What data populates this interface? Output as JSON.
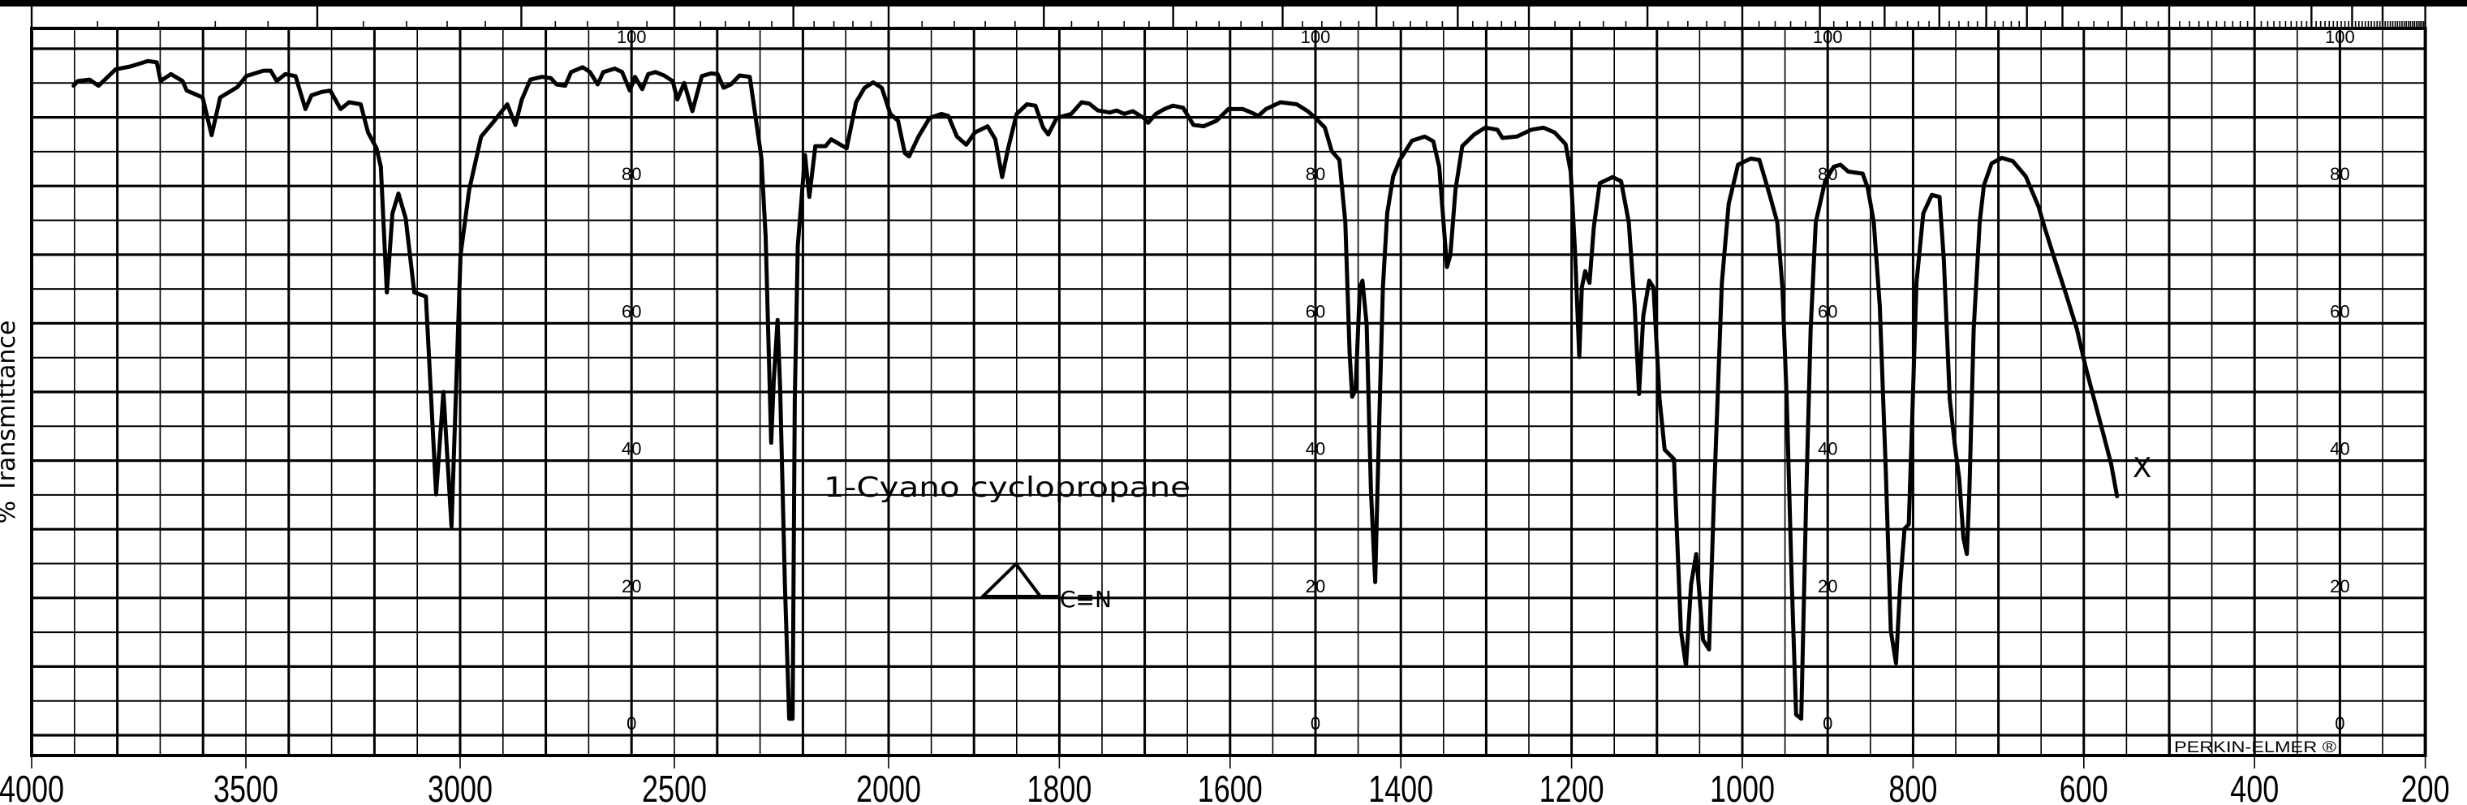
{
  "chart_data": {
    "type": "line",
    "title": "",
    "xlabel": "",
    "ylabel": "% Transmittance",
    "xlim": [
      4000,
      200
    ],
    "ylim": [
      0,
      100
    ],
    "x_scale": "piecewise linear, expanded below 2000",
    "grid": true,
    "x_ticks": [
      4000,
      3500,
      3000,
      2500,
      2000,
      1800,
      1600,
      1400,
      1200,
      1000,
      800,
      600,
      400,
      200
    ],
    "y_ticks": [
      100,
      80,
      60,
      40,
      20,
      0
    ],
    "y_tick_label_columns": [
      2600,
      1500,
      900,
      300
    ],
    "top_scale_major_ticks_um": [
      2.5,
      3,
      3.5,
      4,
      4.5,
      5,
      5.5,
      6,
      6.5,
      7,
      7.5,
      8,
      9,
      10,
      11,
      12,
      13,
      14,
      15,
      16,
      18,
      20,
      25,
      30,
      35,
      40,
      50
    ],
    "annotations": {
      "compound_name": "1-Cyano cyclopropane",
      "formula_group": "C≡N",
      "marker": "X",
      "marker_at": [
        540,
        39
      ]
    },
    "brand": "PERKIN-ELMER ®",
    "colors": {
      "ink": "#000000",
      "paper": "#ffffff"
    },
    "series": [
      {
        "points": [
          [
            3902,
            94.6
          ],
          [
            3892,
            95.3
          ],
          [
            3865,
            95.5
          ],
          [
            3844,
            94.6
          ],
          [
            3804,
            97
          ],
          [
            3770,
            97.4
          ],
          [
            3729,
            98.2
          ],
          [
            3708,
            98
          ],
          [
            3699,
            95.3
          ],
          [
            3675,
            96.3
          ],
          [
            3648,
            95.3
          ],
          [
            3638,
            93.9
          ],
          [
            3601,
            92.9
          ],
          [
            3580,
            87.4
          ],
          [
            3560,
            92.9
          ],
          [
            3520,
            94.4
          ],
          [
            3499,
            96
          ],
          [
            3459,
            96.8
          ],
          [
            3442,
            96.8
          ],
          [
            3428,
            95.3
          ],
          [
            3408,
            96.3
          ],
          [
            3384,
            96
          ],
          [
            3361,
            91.2
          ],
          [
            3347,
            93.2
          ],
          [
            3323,
            93.7
          ],
          [
            3303,
            93.9
          ],
          [
            3279,
            91.2
          ],
          [
            3259,
            92.2
          ],
          [
            3232,
            91.9
          ],
          [
            3215,
            87.8
          ],
          [
            3195,
            85.5
          ],
          [
            3185,
            82.8
          ],
          [
            3171,
            64.5
          ],
          [
            3158,
            76
          ],
          [
            3144,
            78.9
          ],
          [
            3127,
            75.3
          ],
          [
            3107,
            64.5
          ],
          [
            3080,
            63.9
          ],
          [
            3056,
            35.1
          ],
          [
            3039,
            50
          ],
          [
            3020,
            30.4
          ],
          [
            2999,
            69.9
          ],
          [
            2979,
            79.4
          ],
          [
            2951,
            87.2
          ],
          [
            2924,
            89.2
          ],
          [
            2890,
            91.9
          ],
          [
            2871,
            88.9
          ],
          [
            2856,
            92.6
          ],
          [
            2836,
            95.5
          ],
          [
            2809,
            95.9
          ],
          [
            2788,
            95.7
          ],
          [
            2775,
            94.8
          ],
          [
            2755,
            94.6
          ],
          [
            2741,
            96.6
          ],
          [
            2714,
            97.3
          ],
          [
            2697,
            96.6
          ],
          [
            2679,
            94.8
          ],
          [
            2666,
            96.6
          ],
          [
            2639,
            97.1
          ],
          [
            2622,
            96.6
          ],
          [
            2604,
            93.9
          ],
          [
            2592,
            95.9
          ],
          [
            2575,
            94.1
          ],
          [
            2561,
            96.3
          ],
          [
            2544,
            96.6
          ],
          [
            2524,
            96.1
          ],
          [
            2504,
            95.3
          ],
          [
            2493,
            92.6
          ],
          [
            2477,
            95
          ],
          [
            2458,
            90.9
          ],
          [
            2436,
            96
          ],
          [
            2415,
            96.4
          ],
          [
            2399,
            96.3
          ],
          [
            2385,
            94.3
          ],
          [
            2368,
            94.8
          ],
          [
            2348,
            96.1
          ],
          [
            2324,
            95.9
          ],
          [
            2314,
            91.6
          ],
          [
            2297,
            84.1
          ],
          [
            2287,
            72.6
          ],
          [
            2274,
            42.6
          ],
          [
            2268,
            51.7
          ],
          [
            2259,
            60.5
          ],
          [
            2253,
            50.3
          ],
          [
            2242,
            22
          ],
          [
            2232,
            2.4
          ],
          [
            2224,
            2.4
          ],
          [
            2219,
            49
          ],
          [
            2212,
            71.3
          ],
          [
            2195,
            84.5
          ],
          [
            2185,
            78.4
          ],
          [
            2171,
            85.8
          ],
          [
            2147,
            85.8
          ],
          [
            2134,
            86.8
          ],
          [
            2098,
            85.5
          ],
          [
            2076,
            92.2
          ],
          [
            2056,
            94.3
          ],
          [
            2036,
            95.1
          ],
          [
            2016,
            94.3
          ],
          [
            1998,
            90.5
          ],
          [
            1989,
            89.5
          ],
          [
            1981,
            84.8
          ],
          [
            1976,
            84.3
          ],
          [
            1965,
            87.2
          ],
          [
            1952,
            89.9
          ],
          [
            1938,
            90.5
          ],
          [
            1930,
            90.2
          ],
          [
            1920,
            87.2
          ],
          [
            1909,
            86
          ],
          [
            1899,
            87.8
          ],
          [
            1884,
            88.7
          ],
          [
            1875,
            86.8
          ],
          [
            1867,
            81.3
          ],
          [
            1860,
            85.5
          ],
          [
            1850,
            90.5
          ],
          [
            1838,
            91.9
          ],
          [
            1828,
            91.7
          ],
          [
            1819,
            88.5
          ],
          [
            1813,
            87.5
          ],
          [
            1803,
            89.9
          ],
          [
            1786,
            90.5
          ],
          [
            1774,
            92.2
          ],
          [
            1765,
            92
          ],
          [
            1755,
            91
          ],
          [
            1741,
            90.7
          ],
          [
            1733,
            91
          ],
          [
            1724,
            90.5
          ],
          [
            1714,
            90.9
          ],
          [
            1701,
            89.9
          ],
          [
            1696,
            89.2
          ],
          [
            1687,
            90.5
          ],
          [
            1677,
            91.2
          ],
          [
            1667,
            91.7
          ],
          [
            1655,
            91.4
          ],
          [
            1643,
            88.9
          ],
          [
            1631,
            88.7
          ],
          [
            1616,
            89.5
          ],
          [
            1602,
            91.2
          ],
          [
            1585,
            91.2
          ],
          [
            1575,
            90.7
          ],
          [
            1567,
            90.2
          ],
          [
            1558,
            91.2
          ],
          [
            1541,
            92.2
          ],
          [
            1522,
            91.9
          ],
          [
            1509,
            90.9
          ],
          [
            1500,
            89.9
          ],
          [
            1489,
            88.5
          ],
          [
            1481,
            85.1
          ],
          [
            1472,
            83.8
          ],
          [
            1465,
            74.7
          ],
          [
            1460,
            55.7
          ],
          [
            1457,
            49.3
          ],
          [
            1453,
            50.3
          ],
          [
            1448,
            65.2
          ],
          [
            1445,
            66.2
          ],
          [
            1440,
            59.8
          ],
          [
            1435,
            35.5
          ],
          [
            1430,
            22.3
          ],
          [
            1426,
            42.2
          ],
          [
            1421,
            65.2
          ],
          [
            1416,
            76
          ],
          [
            1409,
            81.4
          ],
          [
            1401,
            83.8
          ],
          [
            1387,
            86.6
          ],
          [
            1372,
            87.2
          ],
          [
            1362,
            86.5
          ],
          [
            1355,
            82.8
          ],
          [
            1350,
            74.7
          ],
          [
            1346,
            68.2
          ],
          [
            1342,
            69.9
          ],
          [
            1336,
            79.4
          ],
          [
            1328,
            85.8
          ],
          [
            1314,
            87.5
          ],
          [
            1301,
            88.5
          ],
          [
            1287,
            88.2
          ],
          [
            1281,
            87
          ],
          [
            1264,
            87.2
          ],
          [
            1247,
            88.2
          ],
          [
            1233,
            88.5
          ],
          [
            1220,
            87.8
          ],
          [
            1207,
            86.1
          ],
          [
            1201,
            82.1
          ],
          [
            1196,
            70.6
          ],
          [
            1191,
            55.1
          ],
          [
            1188,
            65.2
          ],
          [
            1184,
            67.6
          ],
          [
            1179,
            65.9
          ],
          [
            1174,
            74
          ],
          [
            1167,
            80.4
          ],
          [
            1152,
            81.3
          ],
          [
            1142,
            80.7
          ],
          [
            1133,
            74.7
          ],
          [
            1126,
            62.5
          ],
          [
            1121,
            49.7
          ],
          [
            1116,
            61.1
          ],
          [
            1109,
            66.2
          ],
          [
            1104,
            65.2
          ],
          [
            1097,
            49
          ],
          [
            1091,
            41.6
          ],
          [
            1080,
            40.2
          ],
          [
            1072,
            15.2
          ],
          [
            1066,
            10.1
          ],
          [
            1060,
            22
          ],
          [
            1054,
            26.4
          ],
          [
            1046,
            13.9
          ],
          [
            1039,
            12.5
          ],
          [
            1033,
            35.5
          ],
          [
            1024,
            65.9
          ],
          [
            1016,
            77.4
          ],
          [
            1005,
            83.1
          ],
          [
            990,
            84
          ],
          [
            980,
            83.8
          ],
          [
            968,
            78.7
          ],
          [
            959,
            74.7
          ],
          [
            953,
            65.2
          ],
          [
            948,
            49
          ],
          [
            942,
            22
          ],
          [
            937,
            3
          ],
          [
            931,
            2.4
          ],
          [
            925,
            35.5
          ],
          [
            920,
            59.1
          ],
          [
            914,
            74.7
          ],
          [
            903,
            80.7
          ],
          [
            893,
            82.8
          ],
          [
            885,
            83.1
          ],
          [
            876,
            82.1
          ],
          [
            859,
            81.8
          ],
          [
            853,
            79.7
          ],
          [
            846,
            74.7
          ],
          [
            839,
            62.5
          ],
          [
            832,
            38.9
          ],
          [
            826,
            15.2
          ],
          [
            820,
            10.5
          ],
          [
            815,
            22
          ],
          [
            810,
            30.1
          ],
          [
            805,
            30.7
          ],
          [
            802,
            42.2
          ],
          [
            796,
            65.9
          ],
          [
            788,
            76
          ],
          [
            778,
            78.7
          ],
          [
            769,
            78.4
          ],
          [
            764,
            69.3
          ],
          [
            757,
            49
          ],
          [
            751,
            42.2
          ],
          [
            746,
            37.5
          ],
          [
            741,
            28.7
          ],
          [
            737,
            26.4
          ],
          [
            734,
            35.5
          ],
          [
            729,
            59.1
          ],
          [
            722,
            74.7
          ],
          [
            717,
            80.1
          ],
          [
            708,
            83.3
          ],
          [
            696,
            84.1
          ],
          [
            683,
            83.6
          ],
          [
            668,
            81.4
          ],
          [
            653,
            77
          ],
          [
            646,
            74
          ],
          [
            634,
            69.3
          ],
          [
            620,
            63.9
          ],
          [
            608,
            59.1
          ],
          [
            598,
            53.7
          ],
          [
            588,
            49
          ],
          [
            578,
            44.3
          ],
          [
            568,
            39.5
          ],
          [
            561,
            34.8
          ]
        ]
      }
    ]
  }
}
